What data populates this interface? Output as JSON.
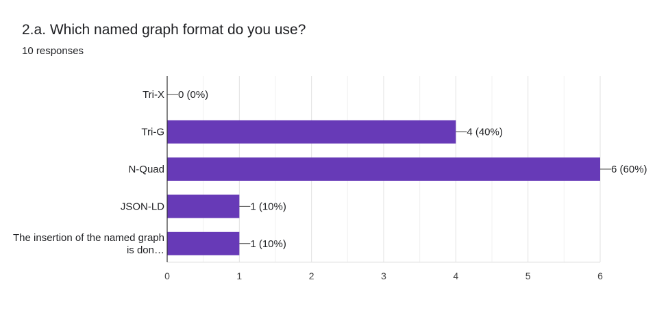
{
  "question": {
    "title": "2.a. Which named graph format do you use?",
    "responses": "10 responses"
  },
  "colors": {
    "bar": "#673ab7",
    "grid": "#e8e8e8",
    "axis": "#333333"
  },
  "chart_data": {
    "type": "bar",
    "orientation": "horizontal",
    "categories": [
      [
        "Tri-X"
      ],
      [
        "Tri-G"
      ],
      [
        "N-Quad"
      ],
      [
        "JSON-LD"
      ],
      [
        "The insertion of the named graph",
        "is don…"
      ]
    ],
    "values": [
      0,
      4,
      6,
      1,
      1
    ],
    "data_labels": [
      "0 (0%)",
      "4 (40%)",
      "6 (60%)",
      "1 (10%)",
      "1 (10%)"
    ],
    "xlim": [
      0,
      6
    ],
    "xticks": [
      0,
      1,
      2,
      3,
      4,
      5,
      6
    ],
    "grid": true
  }
}
